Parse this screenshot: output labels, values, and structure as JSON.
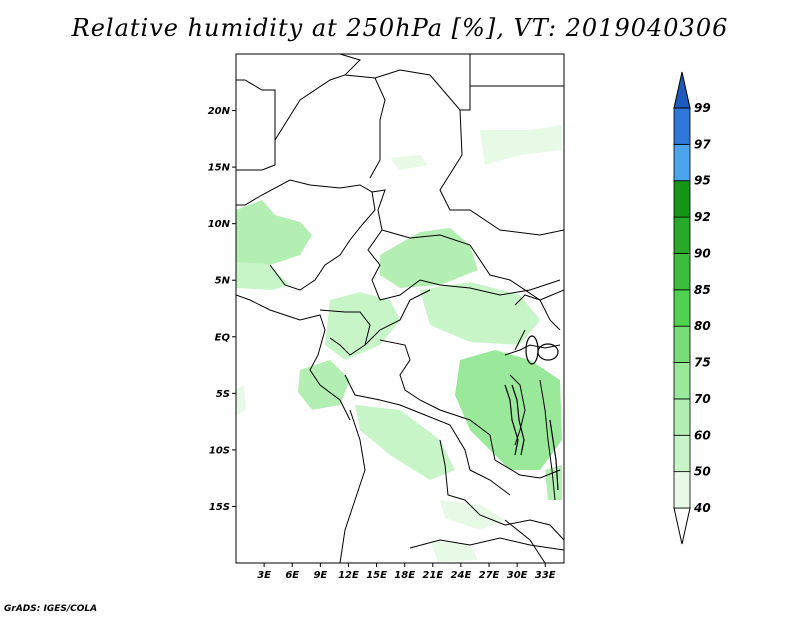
{
  "title": "Relative humidity at 250hPa [%], VT: 2019040306",
  "credit": "GrADS: IGES/COLA",
  "map": {
    "lon_range": [
      0,
      35
    ],
    "lat_range": [
      -20,
      25
    ],
    "lon_ticks": [
      {
        "value": 3,
        "label": "3E"
      },
      {
        "value": 6,
        "label": "6E"
      },
      {
        "value": 9,
        "label": "9E"
      },
      {
        "value": 12,
        "label": "12E"
      },
      {
        "value": 15,
        "label": "15E"
      },
      {
        "value": 18,
        "label": "18E"
      },
      {
        "value": 21,
        "label": "21E"
      },
      {
        "value": 24,
        "label": "24E"
      },
      {
        "value": 27,
        "label": "27E"
      },
      {
        "value": 30,
        "label": "30E"
      },
      {
        "value": 33,
        "label": "33E"
      }
    ],
    "lat_ticks": [
      {
        "value": 20,
        "label": "20N"
      },
      {
        "value": 15,
        "label": "15N"
      },
      {
        "value": 10,
        "label": "10N"
      },
      {
        "value": 5,
        "label": "5N"
      },
      {
        "value": 0,
        "label": "EQ"
      },
      {
        "value": -5,
        "label": "5S"
      },
      {
        "value": -10,
        "label": "10S"
      },
      {
        "value": -15,
        "label": "15S"
      }
    ]
  },
  "colorbar": {
    "levels": [
      "40",
      "50",
      "60",
      "70",
      "75",
      "80",
      "85",
      "90",
      "92",
      "95",
      "97",
      "99"
    ],
    "colors": [
      "#ffffff",
      "#e6fae6",
      "#c8f5c8",
      "#b3efb3",
      "#9ae89a",
      "#78dc78",
      "#50d250",
      "#3cbe3c",
      "#28aa28",
      "#169616",
      "#4ca5ec",
      "#2e78dc",
      "#1e5abe"
    ]
  }
}
